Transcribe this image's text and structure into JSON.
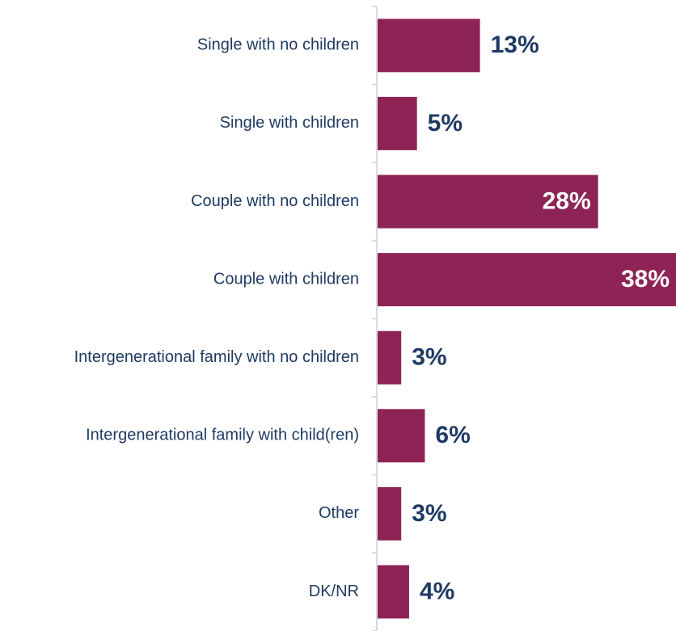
{
  "chart_data": {
    "type": "bar",
    "orientation": "horizontal",
    "title": "",
    "xlabel": "",
    "ylabel": "",
    "categories": [
      "Single with no children",
      "Single with children",
      "Couple with no children",
      "Couple with children",
      "Intergenerational family with no children",
      "Intergenerational family with child(ren)",
      "Other",
      "DK/NR"
    ],
    "values": [
      13,
      5,
      28,
      38,
      3,
      6,
      3,
      4
    ],
    "value_labels": [
      "13%",
      "5%",
      "28%",
      "38%",
      "3%",
      "6%",
      "3%",
      "4%"
    ],
    "unit": "%",
    "xlim": [
      0,
      38
    ],
    "grid": false,
    "legend": "none",
    "colors": {
      "bar": "#8e2455",
      "label_text": "#1f3a63",
      "value_text_outside": "#1f3a63",
      "value_text_inside": "#ffffff",
      "axis": "#d6dbe6"
    }
  }
}
